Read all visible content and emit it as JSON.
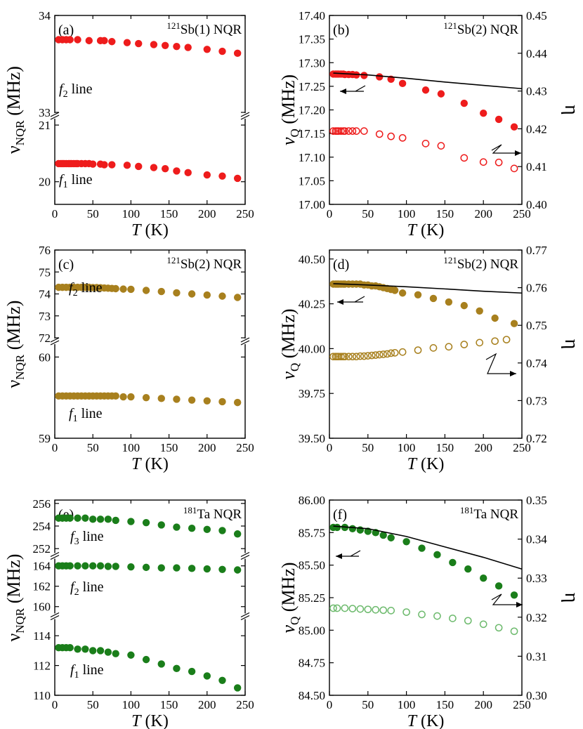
{
  "figure": {
    "panels": [
      {
        "letter": "(a)",
        "isotope_sup": "121",
        "title_rest": "Sb(1) NQR",
        "xlabel": "T",
        "xunit": " (K)",
        "ylabel_main": "ν",
        "ylabel_sub": "NQR",
        "ylabel_unit": " (MHz)",
        "ylabel_right": ""
      },
      {
        "letter": "(b)",
        "isotope_sup": "121",
        "title_rest": "Sb(2) NQR",
        "xlabel": "T",
        "xunit": " (K)",
        "ylabel_main": "ν",
        "ylabel_sub": "Q",
        "ylabel_unit": " (MHz)",
        "ylabel_right": "η"
      },
      {
        "letter": "(c)",
        "isotope_sup": "121",
        "title_rest": "Sb(2) NQR",
        "xlabel": "T",
        "xunit": " (K)",
        "ylabel_main": "ν",
        "ylabel_sub": "NQR",
        "ylabel_unit": " (MHz)",
        "ylabel_right": ""
      },
      {
        "letter": "(d)",
        "isotope_sup": "121",
        "title_rest": "Sb(2) NQR",
        "xlabel": "T",
        "xunit": " (K)",
        "ylabel_main": "ν",
        "ylabel_sub": "Q",
        "ylabel_unit": " (MHz)",
        "ylabel_right": "η"
      },
      {
        "letter": "(e)",
        "isotope_sup": "181",
        "title_rest": "Ta NQR",
        "xlabel": "T",
        "xunit": " (K)",
        "ylabel_main": "ν",
        "ylabel_sub": "NQR",
        "ylabel_unit": " (MHz)",
        "ylabel_right": ""
      },
      {
        "letter": "(f)",
        "isotope_sup": "181",
        "title_rest": "Ta NQR",
        "xlabel": "T",
        "xunit": " (K)",
        "ylabel_main": "ν",
        "ylabel_sub": "Q",
        "ylabel_unit": " (MHz)",
        "ylabel_right": "η"
      }
    ]
  },
  "colors": {
    "red": "#ee1c1c",
    "gold": "#a8801e",
    "green": "#1a7e1a",
    "light_green": "#6dba6d",
    "fit": "#000000"
  },
  "chart_data": [
    {
      "type": "scatter",
      "panel": "a",
      "xlim": [
        0,
        250
      ],
      "xticks": [
        0,
        50,
        100,
        150,
        200,
        250
      ],
      "broken_y_axis": true,
      "y_segments": [
        {
          "ylim": [
            33,
            34
          ],
          "ticks": [
            "33",
            "34"
          ]
        },
        {
          "ylim": [
            19.6,
            21.1
          ],
          "ticks": [
            "20",
            "21"
          ]
        }
      ],
      "series": [
        {
          "line_label": "f",
          "line_sub": "2",
          "line_word": " line",
          "segment": 0,
          "color": "red",
          "filled": true,
          "x": [
            5,
            10,
            15,
            20,
            30,
            45,
            60,
            65,
            75,
            95,
            110,
            130,
            145,
            160,
            175,
            200,
            220,
            240
          ],
          "y": [
            33.75,
            33.75,
            33.75,
            33.75,
            33.75,
            33.74,
            33.74,
            33.74,
            33.73,
            33.72,
            33.71,
            33.7,
            33.69,
            33.68,
            33.67,
            33.65,
            33.63,
            33.61
          ]
        },
        {
          "line_label": "f",
          "line_sub": "1",
          "line_word": " line",
          "segment": 1,
          "color": "red",
          "filled": true,
          "x": [
            5,
            8,
            10,
            12,
            15,
            18,
            20,
            22,
            25,
            28,
            30,
            35,
            40,
            45,
            50,
            60,
            65,
            75,
            95,
            110,
            130,
            145,
            160,
            175,
            200,
            220,
            240
          ],
          "y": [
            20.32,
            20.32,
            20.32,
            20.32,
            20.32,
            20.32,
            20.32,
            20.32,
            20.32,
            20.32,
            20.32,
            20.32,
            20.32,
            20.32,
            20.31,
            20.31,
            20.3,
            20.3,
            20.29,
            20.27,
            20.25,
            20.23,
            20.19,
            20.16,
            20.12,
            20.1,
            20.06
          ]
        }
      ]
    },
    {
      "type": "scatter",
      "panel": "b",
      "xlim": [
        0,
        250
      ],
      "xticks": [
        0,
        50,
        100,
        150,
        200,
        250
      ],
      "ylim": [
        17.0,
        17.4
      ],
      "yticks": [
        "17.00",
        "17.05",
        "17.10",
        "17.15",
        "17.20",
        "17.25",
        "17.30",
        "17.35",
        "17.40"
      ],
      "ylim_right": [
        0.4,
        0.45
      ],
      "yticks_right": [
        "0.40",
        "0.41",
        "0.42",
        "0.43",
        "0.44",
        "0.45"
      ],
      "series": [
        {
          "name": "",
          "axis": "left",
          "color": "red",
          "filled": true,
          "x": [
            5,
            8,
            10,
            12,
            15,
            18,
            20,
            25,
            30,
            35,
            45,
            65,
            80,
            95,
            125,
            145,
            175,
            200,
            220,
            240
          ],
          "y": [
            17.276,
            17.276,
            17.276,
            17.276,
            17.276,
            17.276,
            17.275,
            17.275,
            17.275,
            17.274,
            17.273,
            17.27,
            17.265,
            17.256,
            17.242,
            17.234,
            17.214,
            17.193,
            17.18,
            17.164
          ]
        },
        {
          "name": "",
          "axis": "right",
          "color": "red",
          "filled": false,
          "x": [
            5,
            8,
            10,
            12,
            15,
            18,
            20,
            25,
            30,
            35,
            45,
            65,
            80,
            95,
            125,
            145,
            175,
            200,
            220,
            240
          ],
          "y": [
            0.4194,
            0.4194,
            0.4194,
            0.4194,
            0.4194,
            0.4194,
            0.4194,
            0.4194,
            0.4194,
            0.4194,
            0.4194,
            0.4186,
            0.418,
            0.4176,
            0.4161,
            0.4155,
            0.4123,
            0.4112,
            0.4111,
            0.4095
          ]
        },
        {
          "name": "",
          "axis": "left",
          "color": "fit",
          "line": true,
          "x": [
            5,
            50,
            100,
            150,
            200,
            250
          ],
          "y": [
            17.278,
            17.274,
            17.267,
            17.259,
            17.252,
            17.245
          ]
        }
      ]
    },
    {
      "type": "scatter",
      "panel": "c",
      "xlim": [
        0,
        250
      ],
      "xticks": [
        0,
        50,
        100,
        150,
        200,
        250
      ],
      "broken_y_axis": true,
      "y_segments": [
        {
          "ylim": [
            72,
            76
          ],
          "ticks": [
            "72",
            "73",
            "74",
            "75",
            "76"
          ]
        },
        {
          "ylim": [
            59,
            60.15
          ],
          "ticks": [
            "59",
            "60"
          ]
        }
      ],
      "series": [
        {
          "line_label": "f",
          "line_sub": "2",
          "line_word": " line",
          "segment": 0,
          "color": "gold",
          "filled": true,
          "x": [
            5,
            10,
            15,
            20,
            25,
            30,
            35,
            40,
            45,
            50,
            55,
            60,
            65,
            70,
            75,
            80,
            90,
            100,
            120,
            140,
            160,
            180,
            200,
            220,
            240
          ],
          "y": [
            74.3,
            74.3,
            74.3,
            74.3,
            74.3,
            74.3,
            74.3,
            74.3,
            74.3,
            74.29,
            74.29,
            74.28,
            74.27,
            74.26,
            74.25,
            74.24,
            74.22,
            74.21,
            74.16,
            74.11,
            74.05,
            74.0,
            73.95,
            73.9,
            73.84
          ]
        },
        {
          "line_label": "f",
          "line_sub": "1",
          "line_word": " line",
          "segment": 1,
          "color": "gold",
          "filled": true,
          "x": [
            5,
            10,
            15,
            20,
            25,
            30,
            35,
            40,
            45,
            50,
            55,
            60,
            65,
            70,
            75,
            80,
            90,
            100,
            120,
            140,
            160,
            180,
            200,
            220,
            240
          ],
          "y": [
            59.52,
            59.52,
            59.52,
            59.52,
            59.52,
            59.52,
            59.52,
            59.52,
            59.52,
            59.52,
            59.52,
            59.52,
            59.52,
            59.52,
            59.52,
            59.52,
            59.51,
            59.51,
            59.5,
            59.49,
            59.48,
            59.47,
            59.46,
            59.45,
            59.44
          ]
        }
      ]
    },
    {
      "type": "scatter",
      "panel": "d",
      "xlim": [
        0,
        250
      ],
      "xticks": [
        0,
        50,
        100,
        150,
        200,
        250
      ],
      "ylim": [
        39.5,
        40.55
      ],
      "yticks": [
        "39.50",
        "39.75",
        "40.00",
        "40.25",
        "40.50"
      ],
      "ylim_right": [
        0.72,
        0.77
      ],
      "yticks_right": [
        "0.72",
        "0.73",
        "0.74",
        "0.75",
        "0.76",
        "0.77"
      ],
      "series": [
        {
          "name": "",
          "axis": "left",
          "color": "gold",
          "filled": true,
          "x": [
            5,
            8,
            10,
            12,
            15,
            18,
            20,
            25,
            30,
            35,
            40,
            45,
            50,
            55,
            60,
            65,
            70,
            75,
            80,
            85,
            95,
            115,
            135,
            155,
            175,
            195,
            215,
            240
          ],
          "y": [
            40.36,
            40.36,
            40.36,
            40.36,
            40.36,
            40.36,
            40.36,
            40.36,
            40.36,
            40.36,
            40.36,
            40.355,
            40.355,
            40.35,
            40.35,
            40.345,
            40.34,
            40.335,
            40.33,
            40.325,
            40.31,
            40.3,
            40.28,
            40.26,
            40.24,
            40.21,
            40.17,
            40.14
          ]
        },
        {
          "name": "",
          "axis": "right",
          "color": "gold",
          "filled": false,
          "x": [
            5,
            8,
            10,
            12,
            15,
            18,
            20,
            25,
            30,
            35,
            40,
            45,
            50,
            55,
            60,
            65,
            70,
            75,
            80,
            85,
            95,
            115,
            135,
            155,
            175,
            195,
            215,
            230
          ],
          "y": [
            0.7417,
            0.7417,
            0.7417,
            0.7417,
            0.7417,
            0.7417,
            0.7417,
            0.7417,
            0.7417,
            0.7417,
            0.7418,
            0.7418,
            0.7419,
            0.742,
            0.7421,
            0.7422,
            0.7423,
            0.7424,
            0.7426,
            0.7427,
            0.7429,
            0.7434,
            0.744,
            0.7443,
            0.7449,
            0.7454,
            0.7458,
            0.7462
          ]
        },
        {
          "name": "",
          "axis": "left",
          "color": "fit",
          "line": true,
          "x": [
            5,
            50,
            100,
            150,
            200,
            250
          ],
          "y": [
            40.362,
            40.355,
            40.345,
            40.333,
            40.32,
            40.31
          ]
        }
      ]
    },
    {
      "type": "scatter",
      "panel": "e",
      "xlim": [
        0,
        250
      ],
      "xticks": [
        0,
        50,
        100,
        150,
        200,
        250
      ],
      "broken_y_axis": true,
      "y_segments": [
        {
          "ylim": [
            251.7,
            256.3
          ],
          "ticks": [
            "252",
            "254",
            "256"
          ]
        },
        {
          "ylim": [
            159.5,
            164.6
          ],
          "ticks": [
            "160",
            "162",
            "164"
          ]
        },
        {
          "ylim": [
            110,
            115
          ],
          "ticks": [
            "110",
            "112",
            "114"
          ]
        }
      ],
      "series": [
        {
          "line_label": "f",
          "line_sub": "3",
          "line_word": " line",
          "segment": 0,
          "color": "green",
          "filled": true,
          "x": [
            5,
            10,
            15,
            20,
            30,
            40,
            50,
            60,
            70,
            80,
            100,
            120,
            140,
            160,
            180,
            200,
            220,
            240
          ],
          "y": [
            254.7,
            254.7,
            254.7,
            254.7,
            254.7,
            254.7,
            254.6,
            254.6,
            254.6,
            254.5,
            254.4,
            254.3,
            254.1,
            253.9,
            253.8,
            253.7,
            253.6,
            253.3
          ]
        },
        {
          "line_label": "f",
          "line_sub": "2",
          "line_word": " line",
          "segment": 1,
          "color": "green",
          "filled": true,
          "x": [
            5,
            10,
            15,
            20,
            30,
            40,
            50,
            60,
            70,
            80,
            100,
            120,
            140,
            160,
            180,
            200,
            220,
            240
          ],
          "y": [
            164.0,
            164.0,
            164.0,
            164.0,
            164.0,
            164.0,
            164.0,
            164.0,
            163.95,
            163.95,
            163.9,
            163.85,
            163.8,
            163.8,
            163.75,
            163.7,
            163.65,
            163.6
          ]
        },
        {
          "line_label": "f",
          "line_sub": "1",
          "line_word": " line",
          "segment": 2,
          "color": "green",
          "filled": true,
          "x": [
            5,
            10,
            15,
            20,
            30,
            40,
            50,
            60,
            70,
            80,
            100,
            120,
            140,
            160,
            180,
            200,
            220,
            240
          ],
          "y": [
            113.2,
            113.2,
            113.2,
            113.2,
            113.1,
            113.1,
            113.0,
            113.0,
            112.9,
            112.8,
            112.7,
            112.4,
            112.1,
            111.8,
            111.6,
            111.3,
            111.0,
            110.5
          ]
        }
      ]
    },
    {
      "type": "scatter",
      "panel": "f",
      "xlim": [
        0,
        250
      ],
      "xticks": [
        0,
        50,
        100,
        150,
        200,
        250
      ],
      "ylim": [
        84.5,
        86.0
      ],
      "yticks": [
        "84.50",
        "84.75",
        "85.00",
        "85.25",
        "85.50",
        "85.75",
        "86.00"
      ],
      "ylim_right": [
        0.3,
        0.35
      ],
      "yticks_right": [
        "0.30",
        "0.31",
        "0.32",
        "0.33",
        "0.34",
        "0.35"
      ],
      "series": [
        {
          "name": "",
          "axis": "left",
          "color": "green",
          "filled": true,
          "x": [
            5,
            10,
            20,
            30,
            40,
            50,
            60,
            70,
            80,
            100,
            120,
            140,
            160,
            180,
            200,
            220,
            240
          ],
          "y": [
            85.79,
            85.79,
            85.79,
            85.78,
            85.77,
            85.76,
            85.75,
            85.73,
            85.71,
            85.68,
            85.63,
            85.58,
            85.52,
            85.47,
            85.4,
            85.34,
            85.27
          ]
        },
        {
          "name": "",
          "axis": "right",
          "color": "light_green",
          "filled": false,
          "x": [
            5,
            10,
            20,
            30,
            40,
            50,
            60,
            70,
            80,
            100,
            120,
            140,
            160,
            180,
            200,
            220,
            240
          ],
          "y": [
            0.3223,
            0.3223,
            0.3223,
            0.3222,
            0.3221,
            0.322,
            0.3219,
            0.3218,
            0.3217,
            0.3213,
            0.3207,
            0.3203,
            0.3197,
            0.3191,
            0.3182,
            0.3173,
            0.3164
          ]
        },
        {
          "name": "",
          "axis": "left",
          "color": "fit",
          "line": true,
          "x": [
            5,
            50,
            100,
            150,
            200,
            250
          ],
          "y": [
            85.8,
            85.78,
            85.72,
            85.64,
            85.56,
            85.47
          ]
        }
      ]
    }
  ]
}
